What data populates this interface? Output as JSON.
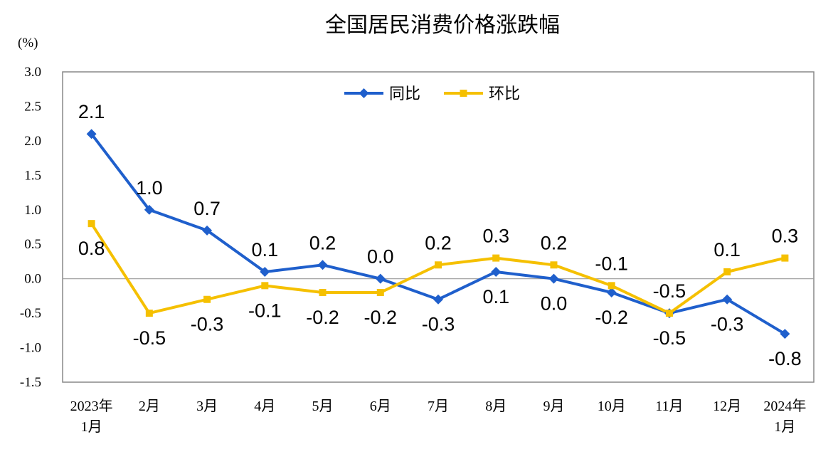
{
  "chart_data": {
    "type": "line",
    "title": "全国居民消费价格涨跌幅",
    "ylabel": "(%)",
    "ylim": [
      -1.5,
      3.0
    ],
    "yticks": [
      "3.0",
      "2.5",
      "2.0",
      "1.5",
      "1.0",
      "0.5",
      "0.0",
      "-0.5",
      "-1.0",
      "-1.5"
    ],
    "categories": [
      [
        "2023年",
        "1月"
      ],
      [
        "2月"
      ],
      [
        "3月"
      ],
      [
        "4月"
      ],
      [
        "5月"
      ],
      [
        "6月"
      ],
      [
        "7月"
      ],
      [
        "8月"
      ],
      [
        "9月"
      ],
      [
        "10月"
      ],
      [
        "11月"
      ],
      [
        "12月"
      ],
      [
        "2024年",
        "1月"
      ]
    ],
    "series": [
      {
        "name": "同比",
        "color": "#1f5fcc",
        "marker": "diamond",
        "values": [
          2.1,
          1.0,
          0.7,
          0.1,
          0.2,
          0.0,
          -0.3,
          0.1,
          0.0,
          -0.2,
          -0.5,
          -0.3,
          -0.8
        ],
        "labels": [
          "2.1",
          "1.0",
          "0.7",
          "0.1",
          "0.2",
          "0.0",
          "-0.3",
          "0.1",
          "0.0",
          "-0.2",
          "-0.5",
          "-0.3",
          "-0.8"
        ]
      },
      {
        "name": "环比",
        "color": "#f5c000",
        "marker": "square",
        "values": [
          0.8,
          -0.5,
          -0.3,
          -0.1,
          -0.2,
          -0.2,
          0.2,
          0.3,
          0.2,
          -0.1,
          -0.5,
          0.1,
          0.3
        ],
        "labels": [
          "0.8",
          "-0.5",
          "-0.3",
          "-0.1",
          "-0.2",
          "-0.2",
          "0.2",
          "0.3",
          "0.2",
          "-0.1",
          "-0.5",
          "0.1",
          "0.3"
        ]
      }
    ],
    "legend": "top-center",
    "grid": false
  }
}
